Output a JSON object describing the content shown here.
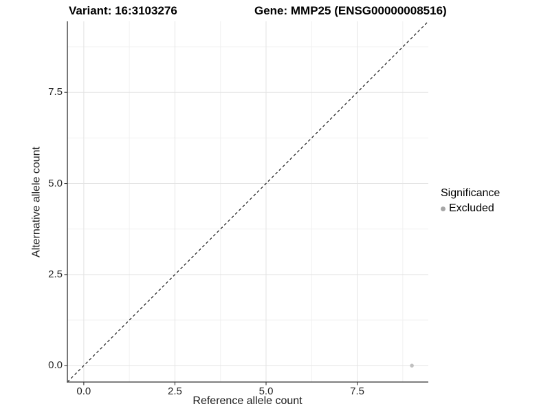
{
  "chart_data": {
    "type": "scatter",
    "titles": {
      "left": "Variant: 16:3103276",
      "right": "Gene: MMP25 (ENSG00000008516)"
    },
    "xlabel": "Reference allele count",
    "ylabel": "Alternative allele count",
    "xlim": [
      -0.45,
      9.45
    ],
    "ylim": [
      -0.45,
      9.45
    ],
    "x_ticks": {
      "values": [
        0,
        2.5,
        5,
        7.5
      ],
      "labels": [
        "0.0",
        "2.5",
        "5.0",
        "7.5"
      ]
    },
    "y_ticks": {
      "values": [
        0,
        2.5,
        5,
        7.5
      ],
      "labels": [
        "0.0",
        "2.5",
        "5.0",
        "7.5"
      ]
    },
    "x_minor_gridlines": [
      1.25,
      3.75,
      6.25,
      8.75
    ],
    "y_minor_gridlines": [
      1.25,
      3.75,
      6.25,
      8.75
    ],
    "grid": "on",
    "legend_position": "right",
    "legend": {
      "title": "Significance",
      "entries": [
        {
          "label": "Excluded",
          "color": "#a6a6a6"
        }
      ]
    },
    "series": [
      {
        "name": "Excluded",
        "marker": "circle",
        "color": "#c0c0c0",
        "size": 2.8,
        "points": [
          [
            9,
            0
          ]
        ]
      }
    ],
    "reference_line": {
      "label": "identity",
      "slope": 1,
      "intercept": 0,
      "style": "dashed",
      "color": "#1a1a1a"
    }
  },
  "colors": {
    "background": "#ffffff",
    "grid_major": "#e3e3e3",
    "grid_minor": "#f1f1f1",
    "axis_line": "#555555",
    "tick_mark": "#333333",
    "tick_label": "#262626"
  }
}
